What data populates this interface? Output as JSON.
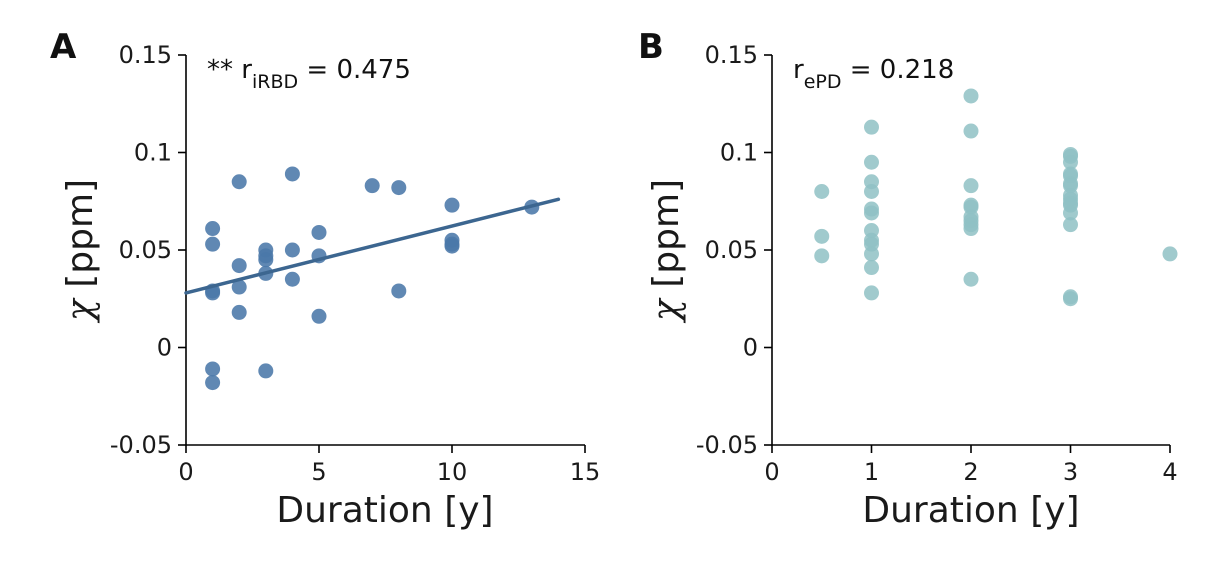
{
  "chart_data": [
    {
      "type": "scatter",
      "panel_label": "A",
      "annotation": {
        "prefix": "** r",
        "subscript": "iRBD",
        "suffix": " = 0.475"
      },
      "xlabel": "Duration [y]",
      "ylabel_symbol": "χ",
      "ylabel_rest": " [ppm]",
      "xlim": [
        0,
        15
      ],
      "ylim": [
        -0.05,
        0.15
      ],
      "xticks": [
        0,
        5,
        10,
        15
      ],
      "xtick_labels": [
        "0",
        "5",
        "10",
        "15"
      ],
      "yticks": [
        -0.05,
        0,
        0.05,
        0.1,
        0.15
      ],
      "ytick_labels": [
        "-0.05",
        "0",
        "0.05",
        "0.1",
        "0.15"
      ],
      "color": "#4a77a8",
      "point_opacity": 0.88,
      "points": [
        [
          1,
          0.061
        ],
        [
          1,
          0.053
        ],
        [
          1,
          0.029
        ],
        [
          1,
          0.028
        ],
        [
          1,
          -0.011
        ],
        [
          1,
          -0.018
        ],
        [
          2,
          0.085
        ],
        [
          2,
          0.042
        ],
        [
          2,
          0.031
        ],
        [
          2,
          0.018
        ],
        [
          3,
          0.05
        ],
        [
          3,
          0.047
        ],
        [
          3,
          0.045
        ],
        [
          3,
          0.038
        ],
        [
          3,
          -0.012
        ],
        [
          4,
          0.089
        ],
        [
          4,
          0.05
        ],
        [
          4,
          0.035
        ],
        [
          5,
          0.059
        ],
        [
          5,
          0.047
        ],
        [
          5,
          0.016
        ],
        [
          7,
          0.083
        ],
        [
          8,
          0.082
        ],
        [
          8,
          0.029
        ],
        [
          10,
          0.073
        ],
        [
          10,
          0.055
        ],
        [
          10,
          0.053
        ],
        [
          10,
          0.052
        ],
        [
          13,
          0.072
        ]
      ],
      "fit_line": {
        "x": [
          0,
          14
        ],
        "y": [
          0.028,
          0.076
        ]
      }
    },
    {
      "type": "scatter",
      "panel_label": "B",
      "annotation": {
        "prefix": "r",
        "subscript": "ePD",
        "suffix": " = 0.218"
      },
      "xlabel": "Duration [y]",
      "ylabel_symbol": "χ",
      "ylabel_rest": " [ppm]",
      "xlim": [
        0,
        4
      ],
      "ylim": [
        -0.05,
        0.15
      ],
      "xticks": [
        0,
        1,
        2,
        3,
        4
      ],
      "xtick_labels": [
        "0",
        "1",
        "2",
        "3",
        "4"
      ],
      "yticks": [
        -0.05,
        0,
        0.05,
        0.1,
        0.15
      ],
      "ytick_labels": [
        "-0.05",
        "0",
        "0.05",
        "0.1",
        "0.15"
      ],
      "color": "#8fc1c4",
      "point_opacity": 0.85,
      "points": [
        [
          0.5,
          0.08
        ],
        [
          0.5,
          0.057
        ],
        [
          0.5,
          0.047
        ],
        [
          1,
          0.113
        ],
        [
          1,
          0.095
        ],
        [
          1,
          0.085
        ],
        [
          1,
          0.08
        ],
        [
          1,
          0.071
        ],
        [
          1,
          0.069
        ],
        [
          1,
          0.06
        ],
        [
          1,
          0.055
        ],
        [
          1,
          0.053
        ],
        [
          1,
          0.048
        ],
        [
          1,
          0.041
        ],
        [
          1,
          0.028
        ],
        [
          2,
          0.129
        ],
        [
          2,
          0.111
        ],
        [
          2,
          0.083
        ],
        [
          2,
          0.073
        ],
        [
          2,
          0.072
        ],
        [
          2,
          0.067
        ],
        [
          2,
          0.065
        ],
        [
          2,
          0.063
        ],
        [
          2,
          0.061
        ],
        [
          2,
          0.035
        ],
        [
          3,
          0.099
        ],
        [
          3,
          0.098
        ],
        [
          3,
          0.095
        ],
        [
          3,
          0.089
        ],
        [
          3,
          0.088
        ],
        [
          3,
          0.084
        ],
        [
          3,
          0.083
        ],
        [
          3,
          0.078
        ],
        [
          3,
          0.076
        ],
        [
          3,
          0.074
        ],
        [
          3,
          0.073
        ],
        [
          3,
          0.069
        ],
        [
          3,
          0.063
        ],
        [
          3,
          0.026
        ],
        [
          3,
          0.025
        ],
        [
          4,
          0.048
        ]
      ]
    }
  ]
}
